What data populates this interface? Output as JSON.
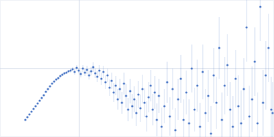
{
  "chart_data": {
    "type": "scatter",
    "color": "#4472c4",
    "marker": "circle",
    "grid": true,
    "tick_labels": false,
    "xlim": [
      0,
      400
    ],
    "ylim": [
      0,
      200
    ],
    "xticks": [
      115
    ],
    "yticks": [
      100
    ],
    "x": [
      37,
      40,
      43,
      46,
      49,
      52,
      55,
      58,
      61,
      64,
      67,
      70,
      73,
      76,
      79,
      82,
      85,
      88,
      91,
      94,
      97,
      100,
      103,
      106,
      109,
      112,
      115,
      118,
      121,
      124,
      127,
      130,
      133,
      136,
      139,
      142,
      145,
      148,
      151,
      154,
      157,
      160,
      163,
      166,
      169,
      172,
      175,
      178,
      181,
      184,
      187,
      190,
      193,
      196,
      199,
      202,
      205,
      208,
      211,
      214,
      217,
      220,
      223,
      226,
      229,
      232,
      236,
      240,
      244,
      248,
      252,
      256,
      260,
      264,
      268,
      272,
      276,
      280,
      284,
      288,
      292,
      296,
      300,
      304,
      308,
      312,
      316,
      320,
      324,
      328,
      332,
      336,
      340,
      344,
      348,
      352,
      356,
      360,
      364,
      368,
      372,
      376,
      380,
      384,
      388,
      392,
      396,
      398
    ],
    "values": [
      25,
      29,
      33,
      37,
      41,
      45,
      49,
      53,
      57,
      61,
      66,
      70,
      74,
      78,
      81,
      84,
      86,
      89,
      91,
      93,
      94,
      96,
      97,
      99,
      95,
      101,
      97,
      92,
      100,
      94,
      98,
      90,
      96,
      102,
      93,
      88,
      97,
      85,
      95,
      80,
      90,
      72,
      82,
      65,
      75,
      55,
      70,
      50,
      78,
      60,
      40,
      67,
      45,
      55,
      35,
      62,
      42,
      70,
      50,
      30,
      58,
      75,
      40,
      65,
      25,
      60,
      15,
      45,
      80,
      30,
      70,
      10,
      55,
      85,
      25,
      65,
      20,
      100,
      40,
      75,
      15,
      95,
      35,
      60,
      5,
      90,
      50,
      130,
      25,
      75,
      105,
      40,
      15,
      85,
      45,
      20,
      70,
      160,
      30,
      55,
      110,
      20,
      190,
      50,
      90,
      130,
      40,
      35
    ],
    "errors": [
      1,
      1,
      1,
      1,
      1,
      1,
      1,
      1,
      1,
      1,
      1,
      1,
      1,
      1,
      1.5,
      1.5,
      1.5,
      2,
      2,
      2,
      2,
      2,
      3,
      3,
      4,
      4,
      4,
      5,
      5,
      5,
      6,
      6,
      6,
      7,
      7,
      8,
      8,
      9,
      9,
      10,
      10,
      12,
      12,
      14,
      14,
      15,
      15,
      16,
      16,
      17,
      17,
      18,
      18,
      19,
      19,
      20,
      20,
      21,
      21,
      22,
      22,
      23,
      23,
      24,
      24,
      25,
      28,
      25,
      30,
      28,
      30,
      32,
      30,
      35,
      30,
      32,
      35,
      35,
      32,
      38,
      35,
      40,
      35,
      38,
      40,
      40,
      38,
      45,
      40,
      42,
      45,
      40,
      45,
      42,
      45,
      48,
      45,
      50,
      45,
      48,
      50,
      45,
      50,
      48,
      50,
      50,
      48,
      45
    ]
  }
}
